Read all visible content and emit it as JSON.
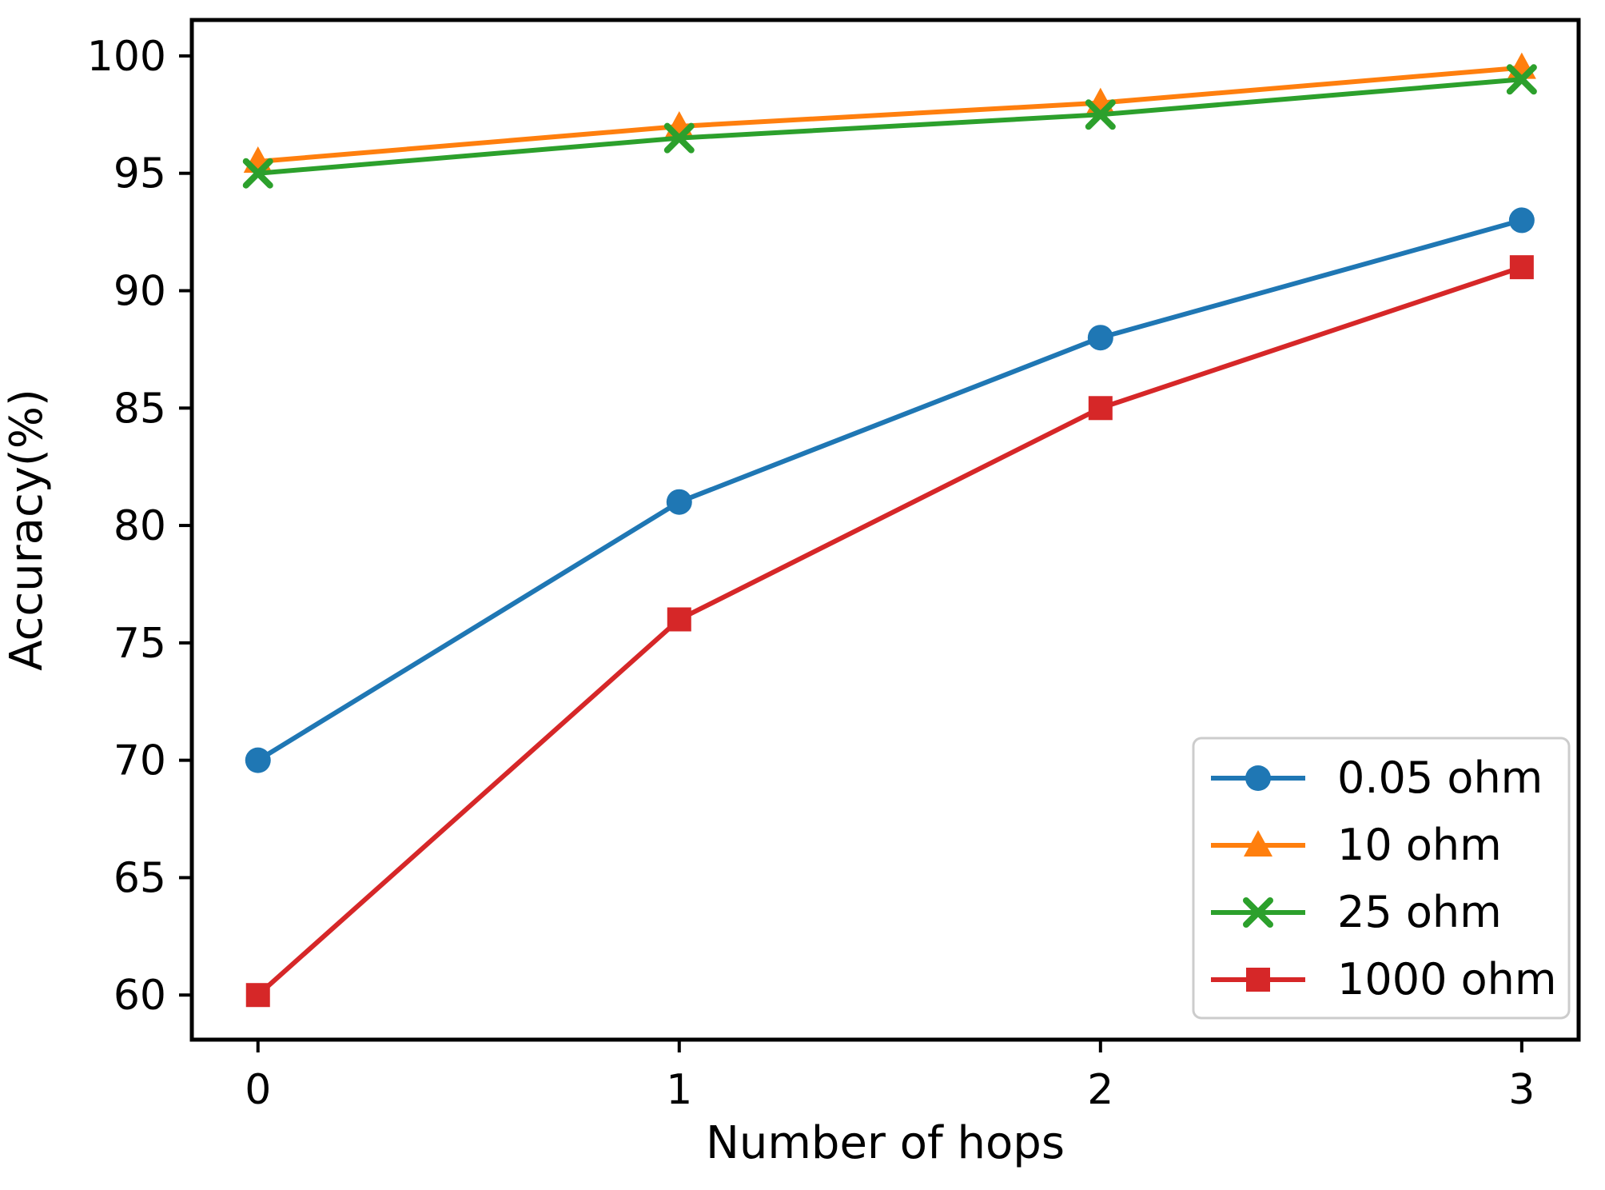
{
  "figure": {
    "background": "#ffffff"
  },
  "chart_data": {
    "type": "line",
    "title": "",
    "xlabel": "Number of hops",
    "ylabel": "Accuracy(%)",
    "x": [
      0,
      1,
      2,
      3
    ],
    "xtick_labels": [
      "0",
      "1",
      "2",
      "3"
    ],
    "ytick_values": [
      60,
      65,
      70,
      75,
      80,
      85,
      90,
      95,
      100
    ],
    "xlim": [
      -0.157,
      3.135
    ],
    "ylim": [
      58.1,
      101.53
    ],
    "grid": false,
    "legend_position": "lower right",
    "series": [
      {
        "name": "0.05 ohm",
        "color": "#1f77b4",
        "marker": "circle",
        "values": [
          70,
          81,
          88,
          93
        ]
      },
      {
        "name": "10 ohm",
        "color": "#ff7f0e",
        "marker": "triangle",
        "values": [
          95.5,
          97,
          98,
          99.5
        ]
      },
      {
        "name": "25 ohm",
        "color": "#2ca02c",
        "marker": "x",
        "values": [
          95,
          96.5,
          97.5,
          99
        ]
      },
      {
        "name": "1000 ohm",
        "color": "#d62728",
        "marker": "square",
        "values": [
          60,
          76,
          85,
          91
        ]
      }
    ]
  },
  "axes": {
    "spine_color": "#000000",
    "tick_color": "#000000",
    "text_color": "#000000"
  },
  "legend": {
    "border_color": "#cccccc",
    "background": "#ffffff"
  }
}
